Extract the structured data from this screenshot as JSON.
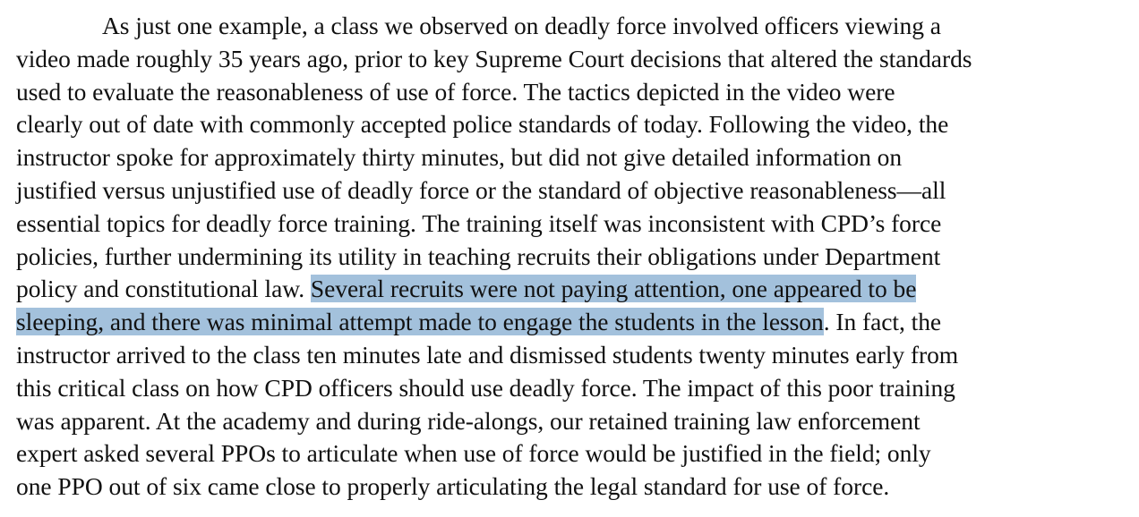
{
  "document": {
    "highlight_color": "#a3c1dc",
    "lines": [
      {
        "text": "As just one example, a class we observed on deadly force involved officers viewing a"
      },
      {
        "text": "video made roughly 35 years ago, prior to key Supreme Court decisions that altered the standards"
      },
      {
        "text": "used to evaluate the reasonableness of use of force.  The tactics depicted in the video were"
      },
      {
        "text": "clearly out of date with commonly accepted police standards of today.  Following the video, the"
      },
      {
        "text": "instructor spoke for approximately thirty minutes, but did not give detailed information on"
      },
      {
        "text": "justified versus unjustified use of deadly force or the standard of objective reasonableness—all"
      },
      {
        "text": "essential topics for deadly force training.  The training itself was inconsistent with CPD’s force"
      },
      {
        "text": "policies, further undermining its utility in teaching recruits their obligations under Department"
      },
      {
        "before": "policy and constitutional law.  ",
        "highlight": "Several recruits were not paying attention, one appeared to be",
        "after": ""
      },
      {
        "before": "",
        "highlight": "sleeping, and there was minimal attempt made to engage the students in the lesson",
        "after": ".  In fact, the"
      },
      {
        "text": "instructor arrived to the class ten minutes late and dismissed students twenty minutes early from"
      },
      {
        "text": "this critical class on how CPD officers should use deadly force.  The impact of this poor training"
      },
      {
        "text": "was apparent.  At the academy and during ride-alongs, our retained training law enforcement"
      },
      {
        "text": "expert asked several PPOs to articulate when use of force would be justified in the field; only"
      },
      {
        "text": "one PPO out of six came close to properly articulating the legal standard for use of force."
      }
    ]
  }
}
